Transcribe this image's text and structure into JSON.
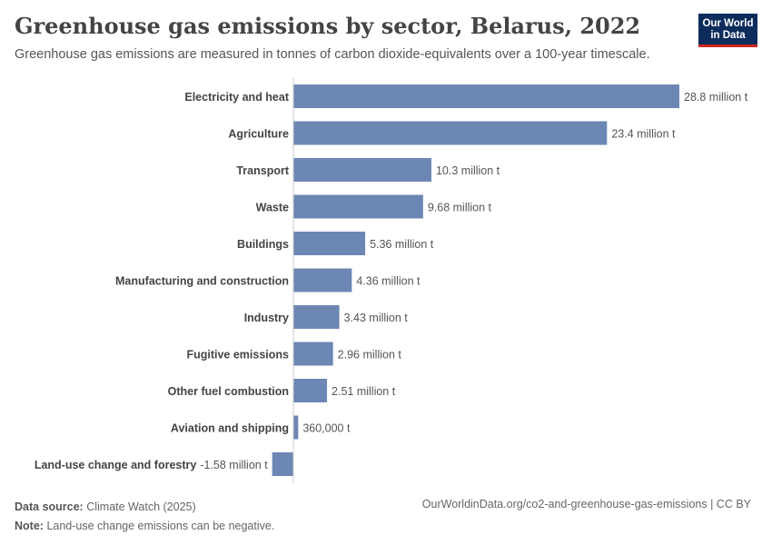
{
  "header": {
    "title": "Greenhouse gas emissions by sector, Belarus, 2022",
    "subtitle": "Greenhouse gas emissions are measured in tonnes of carbon dioxide-equivalents over a 100-year timescale.",
    "logo_line1": "Our World",
    "logo_line2": "in Data"
  },
  "footer": {
    "source_label": "Data source:",
    "source_text": "Climate Watch (2025)",
    "note_label": "Note:",
    "note_text": "Land-use change emissions can be negative.",
    "url": "OurWorldinData.org/co2-and-greenhouse-gas-emissions | CC BY"
  },
  "colors": {
    "bar": "#6d87b4",
    "axis": "#cccccc",
    "label": "#444444",
    "value_label": "#555555"
  },
  "chart_data": {
    "type": "bar",
    "orientation": "horizontal",
    "title": "Greenhouse gas emissions by sector, Belarus, 2022",
    "unit": "tonnes CO2-equivalents",
    "categories": [
      "Electricity and heat",
      "Agriculture",
      "Transport",
      "Waste",
      "Buildings",
      "Manufacturing and construction",
      "Industry",
      "Fugitive emissions",
      "Other fuel combustion",
      "Aviation and shipping",
      "Land-use change and forestry"
    ],
    "values": [
      28800000,
      23400000,
      10300000,
      9680000,
      5360000,
      4360000,
      3430000,
      2960000,
      2510000,
      360000,
      -1580000
    ],
    "value_labels": [
      "28.8 million t",
      "23.4 million t",
      "10.3 million t",
      "9.68 million t",
      "5.36 million t",
      "4.36 million t",
      "3.43 million t",
      "2.96 million t",
      "2.51 million t",
      "360,000 t",
      "-1.58 million t"
    ],
    "xlim": [
      -1580000,
      28800000
    ]
  }
}
